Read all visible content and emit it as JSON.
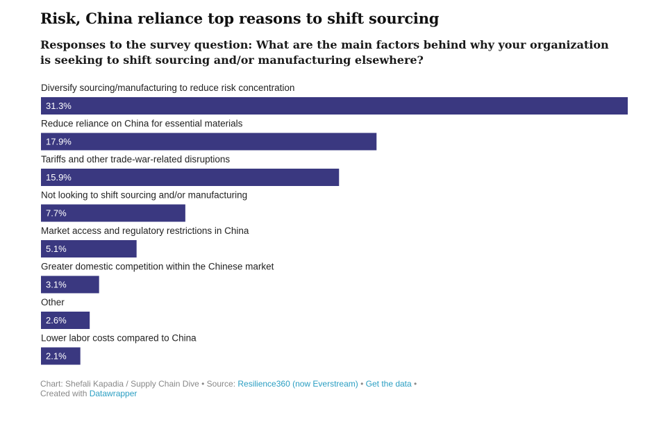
{
  "chart_data": {
    "type": "bar",
    "orientation": "horizontal",
    "title": "Risk, China reliance top reasons to shift sourcing",
    "subtitle": "Responses to the survey question: What are the main factors behind why your organization is seeking to shift sourcing and/or manufacturing elsewhere?",
    "categories": [
      "Diversify sourcing/manufacturing to reduce risk concentration",
      "Reduce reliance on China for essential materials",
      "Tariffs and other trade-war-related disruptions",
      "Not looking to shift sourcing and/or manufacturing",
      "Market access and regulatory restrictions in China",
      "Greater domestic competition within the Chinese market",
      "Other",
      "Lower labor costs compared to China"
    ],
    "values": [
      31.3,
      17.9,
      15.9,
      7.7,
      5.1,
      3.1,
      2.6,
      2.1
    ],
    "value_labels": [
      "31.3%",
      "17.9%",
      "15.9%",
      "7.7%",
      "5.1%",
      "3.1%",
      "2.6%",
      "2.1%"
    ],
    "unit": "%",
    "xlim": [
      0,
      31.3
    ],
    "grid": false,
    "bar_color": "#3a3880"
  },
  "footer": {
    "credit": "Chart: Shefali Kapadia / Supply Chain Dive",
    "sep1": " • Source: ",
    "source": "Resilience360 (now Everstream)",
    "sep2": " • ",
    "get_data": "Get the data",
    "sep3": " •",
    "created_with": "Created with ",
    "tool": "Datawrapper"
  },
  "colors": {
    "bar": "#3a3880",
    "link": "#2a9ec2",
    "footer_text": "#888888"
  }
}
